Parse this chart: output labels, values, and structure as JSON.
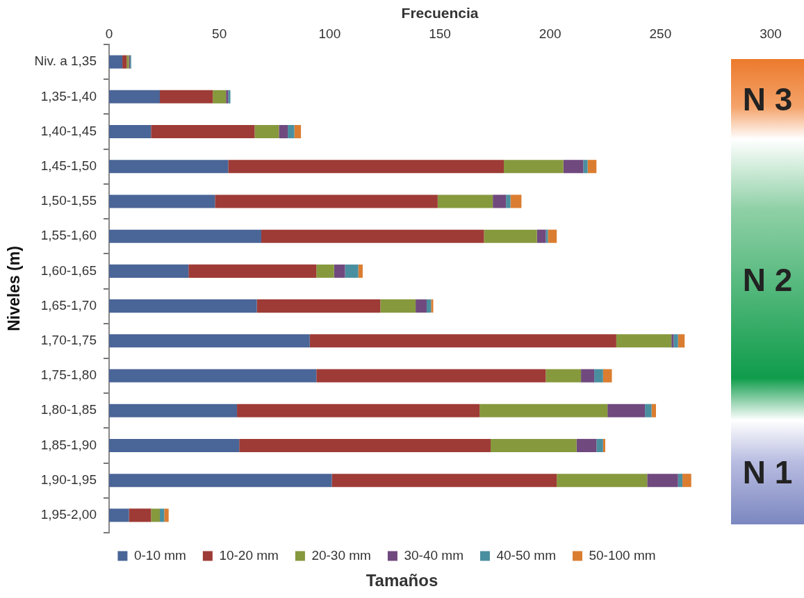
{
  "chart_data": {
    "type": "bar",
    "orientation": "horizontal",
    "stacked": true,
    "xlabel": "Frecuencia",
    "ylabel": "Niveles (m)",
    "legend_title": "Tamaños",
    "legend": "bottom",
    "grid": false,
    "categories": [
      "Niv. a 1,35",
      "1,35-1,40",
      "1,40-1,45",
      "1,45-1,50",
      "1,50-1,55",
      "1,55-1,60",
      "1,60-1,65",
      "1,65-1,70",
      "1,70-1,75",
      "1,75-1,80",
      "1,80-1,85",
      "1,85-1,90",
      "1,90-1,95",
      "1,95-2,00"
    ],
    "xlim": [
      0,
      300
    ],
    "xticks": [
      0,
      50,
      100,
      150,
      200,
      250,
      300
    ],
    "series": [
      {
        "name": "0-10 mm",
        "color": "#4a6597",
        "values": [
          6,
          23,
          19,
          54,
          48,
          69,
          36,
          67,
          91,
          94,
          58,
          59,
          101,
          9
        ]
      },
      {
        "name": "10-20 mm",
        "color": "#9e3b36",
        "values": [
          2,
          24,
          47,
          125,
          101,
          101,
          58,
          56,
          139,
          104,
          110,
          114,
          102,
          10
        ]
      },
      {
        "name": "20-30 mm",
        "color": "#86993d",
        "values": [
          1,
          6,
          11,
          27,
          25,
          24,
          8,
          16,
          25,
          16,
          58,
          39,
          41,
          4
        ]
      },
      {
        "name": "30-40 mm",
        "color": "#70497e",
        "values": [
          0.5,
          1,
          4,
          9,
          6,
          4,
          5,
          5,
          1,
          6,
          17,
          9,
          14,
          0
        ]
      },
      {
        "name": "40-50 mm",
        "color": "#4a8fa0",
        "values": [
          0.5,
          1,
          3,
          2,
          2,
          1,
          6,
          2,
          2,
          4,
          3,
          3,
          2,
          2
        ]
      },
      {
        "name": "50-100 mm",
        "color": "#db7d31",
        "values": [
          0,
          0,
          3,
          4,
          5,
          4,
          2,
          1,
          3,
          4,
          2,
          1,
          4,
          2
        ]
      }
    ],
    "annotations": [
      "N 3",
      "N 2",
      "N 1"
    ]
  }
}
